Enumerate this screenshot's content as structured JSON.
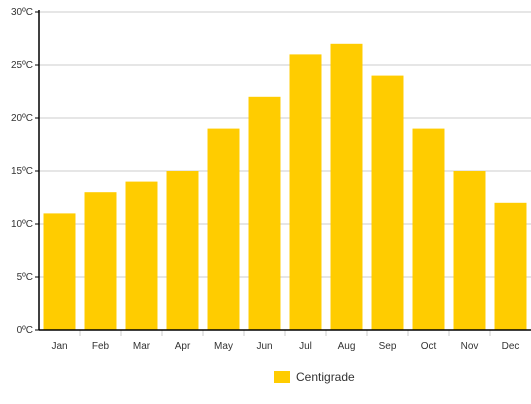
{
  "chart_data": {
    "type": "bar",
    "categories": [
      "Jan",
      "Feb",
      "Mar",
      "Apr",
      "May",
      "Jun",
      "Jul",
      "Aug",
      "Sep",
      "Oct",
      "Nov",
      "Dec"
    ],
    "series": [
      {
        "name": "Centigrade",
        "values": [
          11,
          13,
          14,
          15,
          19,
          22,
          26,
          27,
          24,
          19,
          15,
          12
        ]
      }
    ],
    "ylim": [
      0,
      30
    ],
    "yticks": [
      0,
      5,
      10,
      15,
      20,
      25,
      30
    ],
    "ytick_labels": [
      "0ºC",
      "5ºC",
      "10ºC",
      "15ºC",
      "20ºC",
      "25ºC",
      "30ºC"
    ],
    "grid": true,
    "legend": "bottom-center",
    "title": "",
    "xlabel": "",
    "ylabel": ""
  },
  "colors": {
    "bar": "#FFCC00",
    "grid": "#cccccc",
    "axis": "#000000"
  },
  "legend": {
    "label": "Centigrade"
  }
}
